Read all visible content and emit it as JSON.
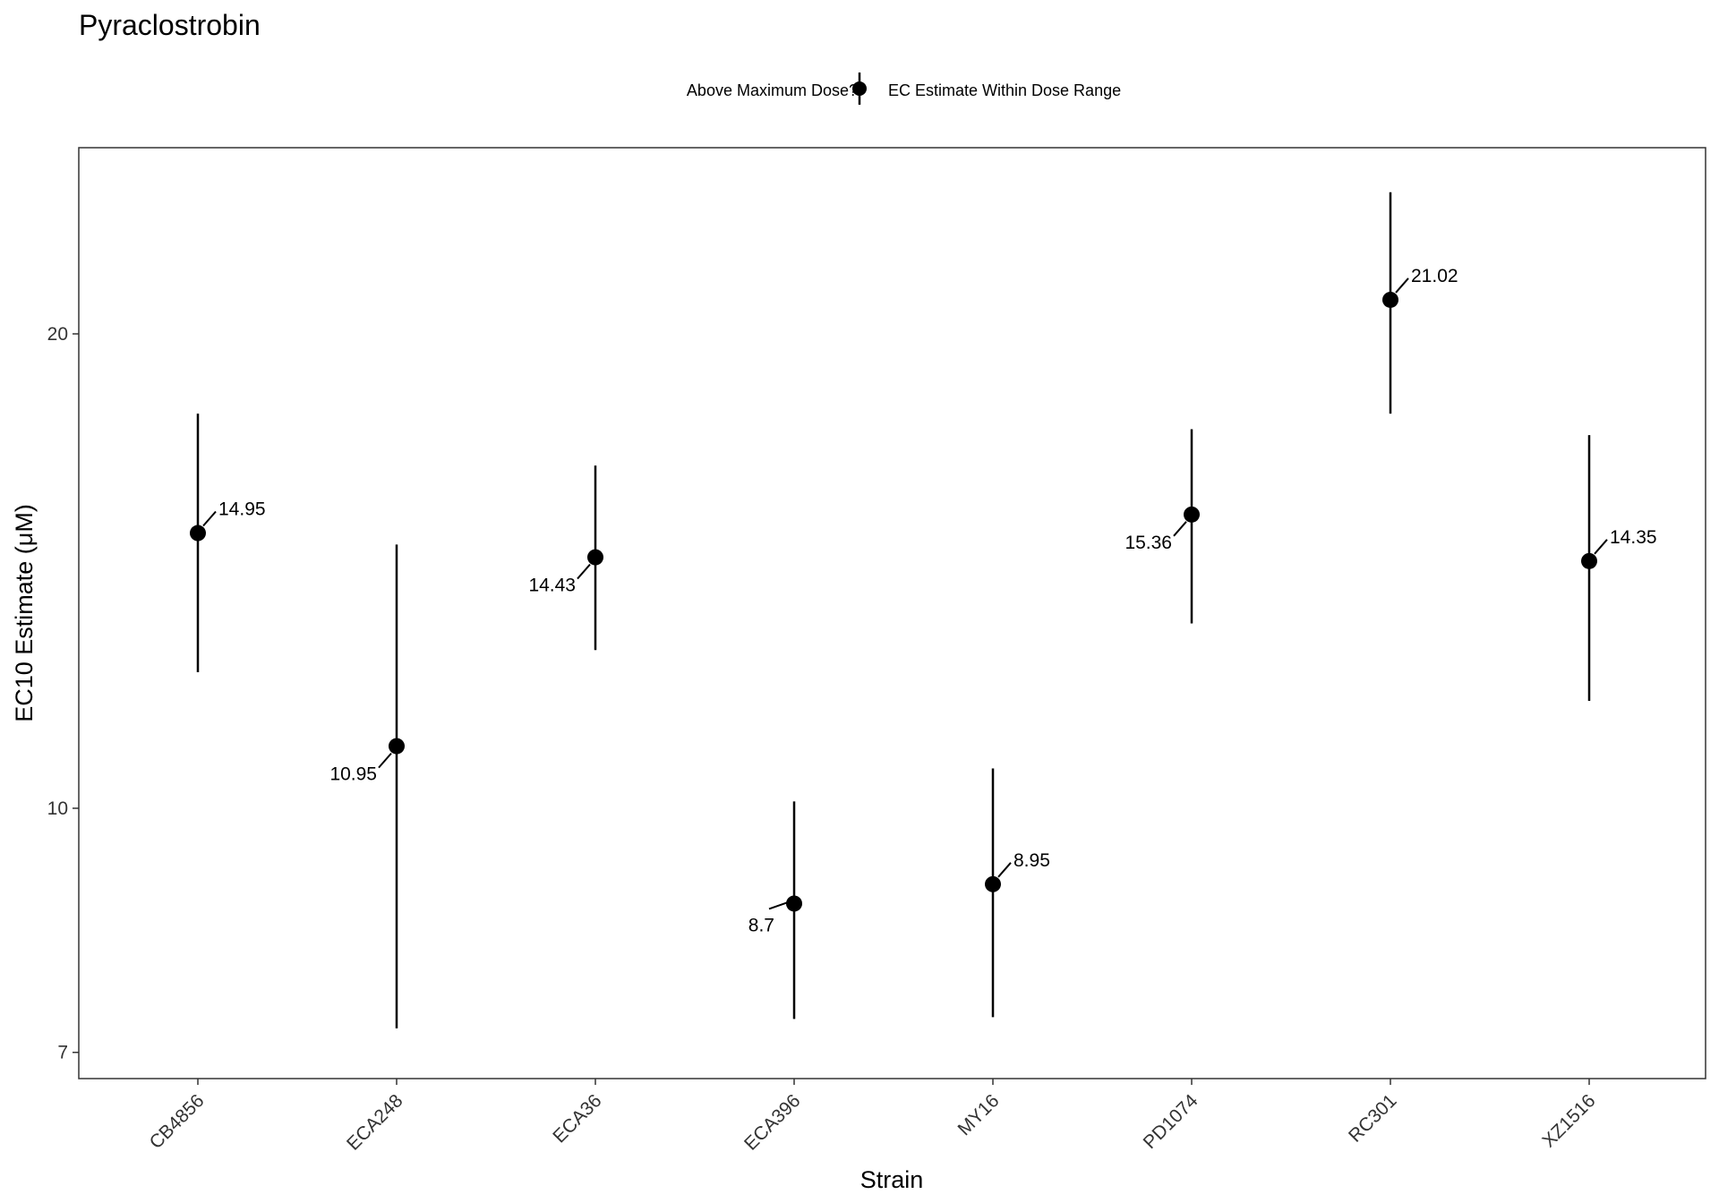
{
  "chart_data": {
    "type": "scatter",
    "title": "Pyraclostrobin",
    "xlabel": "Strain",
    "ylabel": "EC10 Estimate (μM)",
    "y_scale": "log",
    "ylim": [
      6.9,
      24.6
    ],
    "y_ticks": [
      7,
      10,
      20
    ],
    "legend": {
      "title": "Above Maximum Dose?",
      "entries": [
        "EC Estimate Within Dose Range"
      ],
      "placement": "top"
    },
    "grid": false,
    "categories": [
      "CB4856",
      "ECA248",
      "ECA36",
      "ECA396",
      "MY16",
      "PD1074",
      "RC301",
      "XZ1516"
    ],
    "points": [
      {
        "strain": "CB4856",
        "value": 14.95,
        "label": "14.95",
        "lower": 12.2,
        "upper": 17.8,
        "label_side": "right"
      },
      {
        "strain": "ECA248",
        "value": 10.95,
        "label": "10.95",
        "lower": 7.25,
        "upper": 14.7,
        "label_side": "left"
      },
      {
        "strain": "ECA36",
        "value": 14.43,
        "label": "14.43",
        "lower": 12.6,
        "upper": 16.5,
        "label_side": "left"
      },
      {
        "strain": "ECA396",
        "value": 8.7,
        "label": "8.7",
        "lower": 7.35,
        "upper": 10.1,
        "label_side": "left"
      },
      {
        "strain": "MY16",
        "value": 8.95,
        "label": "8.95",
        "lower": 7.37,
        "upper": 10.6,
        "label_side": "right"
      },
      {
        "strain": "PD1074",
        "value": 15.36,
        "label": "15.36",
        "lower": 13.1,
        "upper": 17.4,
        "label_side": "left"
      },
      {
        "strain": "RC301",
        "value": 21.02,
        "label": "21.02",
        "lower": 17.8,
        "upper": 24.6,
        "label_side": "right"
      },
      {
        "strain": "XZ1516",
        "value": 14.35,
        "label": "14.35",
        "lower": 11.7,
        "upper": 17.25,
        "label_side": "right"
      }
    ]
  }
}
